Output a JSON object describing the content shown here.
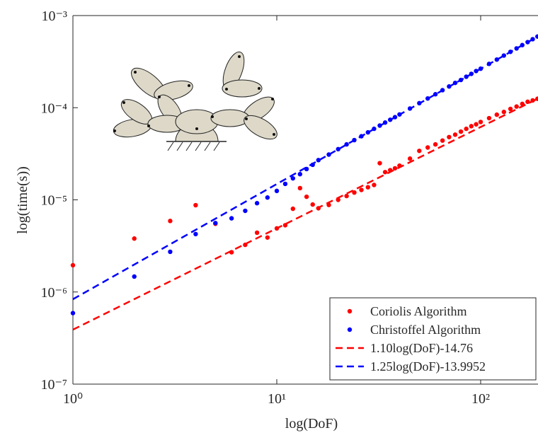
{
  "chart_data": {
    "type": "scatter",
    "xlabel": "log(DoF)",
    "ylabel": "log(time(s))",
    "log_x": true,
    "log_y": true,
    "xlim": [
      1,
      190
    ],
    "ylim": [
      1e-07,
      0.001
    ],
    "xticks": [
      {
        "value": 1,
        "label": "10⁰"
      },
      {
        "value": 10,
        "label": "10¹"
      },
      {
        "value": 100,
        "label": "10²"
      }
    ],
    "yticks": [
      {
        "value": 1e-07,
        "label": "10⁻⁷"
      },
      {
        "value": 1e-06,
        "label": "10⁻⁶"
      },
      {
        "value": 1e-05,
        "label": "10⁻⁵"
      },
      {
        "value": 0.0001,
        "label": "10⁻⁴"
      },
      {
        "value": 0.001,
        "label": "10⁻³"
      }
    ],
    "legend": "lower right",
    "series": [
      {
        "name": "Coriolis Algorithm",
        "color": "#ff0000",
        "style": "markers",
        "x": [
          1,
          2,
          3,
          4,
          5,
          6,
          7,
          8,
          9,
          10,
          11,
          12,
          13,
          14,
          15,
          16,
          18,
          20,
          22,
          24,
          26,
          28,
          30,
          32,
          34,
          36,
          38,
          40,
          45,
          50,
          55,
          60,
          65,
          70,
          75,
          80,
          85,
          90,
          95,
          100,
          110,
          120,
          130,
          140,
          150,
          160,
          170,
          180,
          190
        ],
        "values": [
          1.95e-06,
          3.8e-06,
          5.9e-06,
          8.75e-06,
          5.5e-06,
          2.7e-06,
          3.25e-06,
          4.4e-06,
          3.9e-06,
          4.9e-06,
          5.3e-06,
          8e-06,
          1.34e-05,
          1.08e-05,
          8.9e-06,
          8.1e-06,
          8.8e-06,
          1e-05,
          1.1e-05,
          1.2e-05,
          1.28e-05,
          1.37e-05,
          1.45e-05,
          2.5e-05,
          2e-05,
          2.1e-05,
          2.2e-05,
          2.35e-05,
          2.8e-05,
          3.4e-05,
          3.7e-05,
          4e-05,
          4.4e-05,
          4.8e-05,
          5.1e-05,
          5.5e-05,
          5.9e-05,
          6.3e-05,
          6.6e-05,
          7e-05,
          7.7e-05,
          8.4e-05,
          9e-05,
          9.7e-05,
          0.000103,
          0.00011,
          0.000116,
          0.00012,
          0.000125
        ]
      },
      {
        "name": "Christoffel Algorithm",
        "color": "#0000ff",
        "style": "markers",
        "x": [
          1,
          2,
          3,
          4,
          5,
          6,
          7,
          8,
          9,
          10,
          11,
          12,
          13,
          14,
          15,
          16,
          18,
          20,
          22,
          24,
          26,
          28,
          30,
          32,
          34,
          36,
          38,
          40,
          45,
          50,
          55,
          60,
          65,
          70,
          75,
          80,
          85,
          90,
          95,
          100,
          110,
          120,
          130,
          140,
          150,
          160,
          170,
          180,
          190
        ],
        "values": [
          5.9e-07,
          1.47e-06,
          2.73e-06,
          4.25e-06,
          5.6e-06,
          6.3e-06,
          7.6e-06,
          9.2e-06,
          1.06e-05,
          1.25e-05,
          1.49e-05,
          1.71e-05,
          1.9e-05,
          2.16e-05,
          2.4e-05,
          2.7e-05,
          3.1e-05,
          3.55e-05,
          4e-05,
          4.45e-05,
          4.9e-05,
          5.4e-05,
          5.9e-05,
          6.4e-05,
          6.9e-05,
          7.4e-05,
          7.9e-05,
          8.45e-05,
          9.8e-05,
          0.000112,
          0.000126,
          0.00014,
          0.000155,
          0.00017,
          0.000186,
          0.0002,
          0.000217,
          0.000233,
          0.00025,
          0.000265,
          0.000299,
          0.000333,
          0.000368,
          0.000404,
          0.00044,
          0.000478,
          0.000515,
          0.000554,
          0.000592
        ]
      },
      {
        "name": "1.10log(DoF)-14.76",
        "color": "#ff0000",
        "style": "dashed",
        "x": [
          1,
          190
        ],
        "values": [
          3.9e-07,
          0.000125
        ]
      },
      {
        "name": "1.25log(DoF)-13.9952",
        "color": "#0000ff",
        "style": "dashed",
        "x": [
          1,
          190
        ],
        "values": [
          8.34e-07,
          0.00059
        ]
      }
    ]
  }
}
